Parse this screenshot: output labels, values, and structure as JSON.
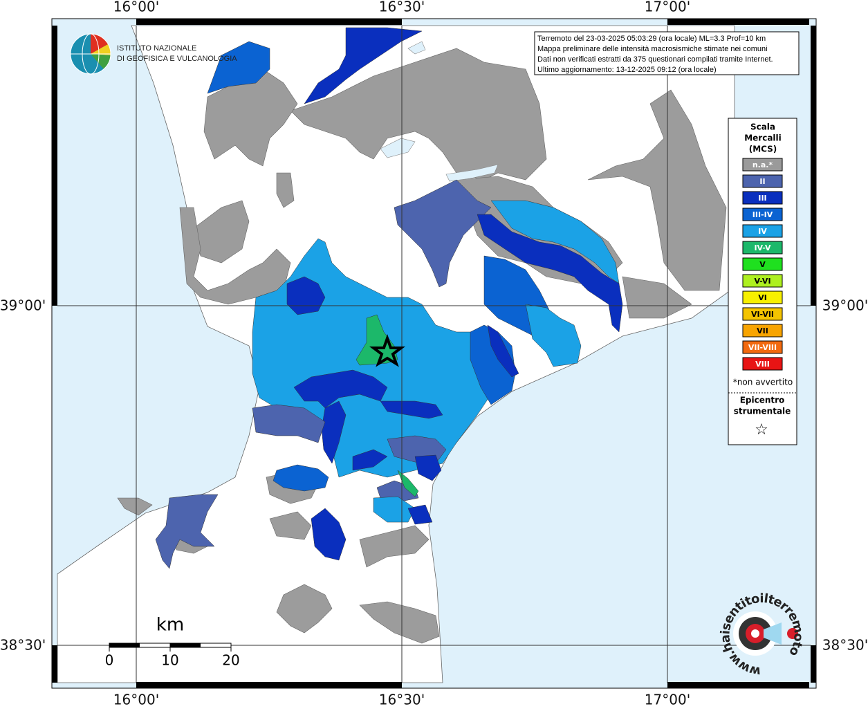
{
  "map": {
    "lon_labels": [
      "16°00'",
      "16°30'",
      "17°00'"
    ],
    "lat_labels": [
      "39°00'",
      "38°30'"
    ],
    "institute": [
      "ISTITUTO NAZIONALE",
      "DI GEOFISICA E VULCANOLOGIA"
    ],
    "info": [
      "Terremoto del 23-03-2025 05:03:29 (ora locale) ML=3.3 Prof=10 km",
      "Mappa preliminare delle intensità macrosismiche stimate nei comuni",
      "Dati non verificati estratti da 375 questionari compilati tramite Internet.",
      "Ultimo aggiornamento: 13-12-2025 09:12 (ora locale)"
    ],
    "legend": {
      "title": [
        "Scala",
        "Mercalli",
        "(MCS)"
      ],
      "items": [
        {
          "label": "n.a.*",
          "color": "#9a9a9a"
        },
        {
          "label": "II",
          "color": "#4d64ae"
        },
        {
          "label": "III",
          "color": "#0a2fbe"
        },
        {
          "label": "III-IV",
          "color": "#0b63d2"
        },
        {
          "label": "IV",
          "color": "#1ba2e6"
        },
        {
          "label": "IV-V",
          "color": "#1cb86a"
        },
        {
          "label": "V",
          "color": "#1fe01f"
        },
        {
          "label": "V-VI",
          "color": "#aef020"
        },
        {
          "label": "VI",
          "color": "#f8f000"
        },
        {
          "label": "VI-VII",
          "color": "#f4c400"
        },
        {
          "label": "VII",
          "color": "#f8a400"
        },
        {
          "label": "VII-VIII",
          "color": "#f26a10"
        },
        {
          "label": "VIII",
          "color": "#e81414"
        }
      ],
      "note": "*non avvertito",
      "epicenter": [
        "Epicentro",
        "strumentale"
      ],
      "star": "☆"
    },
    "scale": {
      "unit": "km",
      "labels": [
        "0",
        "10",
        "20"
      ]
    },
    "site": "www.haisentitoilterremoto.it"
  }
}
